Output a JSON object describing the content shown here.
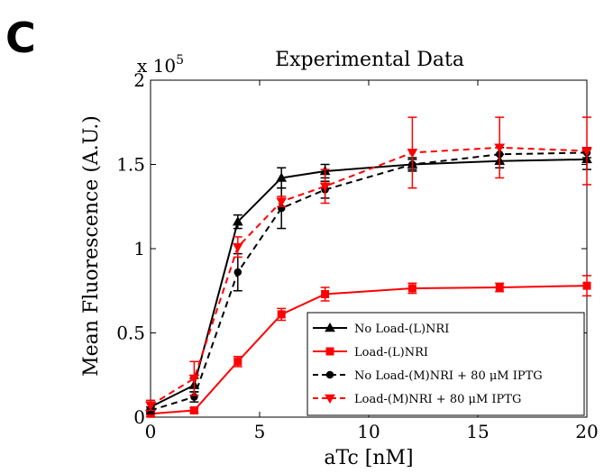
{
  "panel_label": "C",
  "chart_data": {
    "type": "line",
    "title": "Experimental Data",
    "xlabel": "aTc [nM]",
    "ylabel": "Mean Fluorescence (A.U.)",
    "xlim": [
      0,
      20
    ],
    "ylim": [
      0,
      200000
    ],
    "x_ticks": [
      0,
      5,
      10,
      15,
      20
    ],
    "y_ticks": [
      0,
      50000,
      100000,
      150000,
      200000
    ],
    "x_tick_labels": [
      "0",
      "5",
      "10",
      "15",
      "20"
    ],
    "y_tick_labels": [
      "0",
      "0.5",
      "1",
      "1.5",
      "2"
    ],
    "y_exponent_label": "x 10",
    "y_exponent_power": "5",
    "grid": false,
    "legend_position": "bottom-right",
    "x": [
      0,
      2,
      4,
      6,
      8,
      12,
      16,
      20
    ],
    "series": [
      {
        "name": "No Load-(L)NRI",
        "color": "#000000",
        "dash": "solid",
        "marker": "triangle-up",
        "values": [
          6000,
          19000,
          116000,
          142000,
          146000,
          150000,
          152000,
          153000
        ],
        "errors": [
          3000,
          4000,
          4000,
          6000,
          4000,
          3000,
          4000,
          6000
        ]
      },
      {
        "name": "Load-(L)NRI",
        "color": "#ff0000",
        "dash": "solid",
        "marker": "square",
        "values": [
          2000,
          4000,
          33000,
          61000,
          73000,
          76500,
          77000,
          78000
        ],
        "errors": [
          1500,
          1500,
          3000,
          3500,
          4000,
          3000,
          2500,
          6000
        ]
      },
      {
        "name": "No Load-(M)NRI + 80 μM IPTG",
        "color": "#000000",
        "dash": "dashed",
        "marker": "circle",
        "values": [
          4000,
          12000,
          86000,
          124000,
          135000,
          150000,
          156000,
          157000
        ],
        "errors": [
          2000,
          3000,
          11000,
          12000,
          5000,
          4000,
          4000,
          3000
        ]
      },
      {
        "name": "Load-(M)NRI + 80 μM IPTG",
        "color": "#ff0000",
        "dash": "dashed",
        "marker": "triangle-down",
        "values": [
          7000,
          23000,
          101000,
          128000,
          137000,
          157000,
          160000,
          158000
        ],
        "errors": [
          3000,
          10000,
          6000,
          3000,
          10000,
          21000,
          18000,
          20000
        ]
      }
    ]
  }
}
